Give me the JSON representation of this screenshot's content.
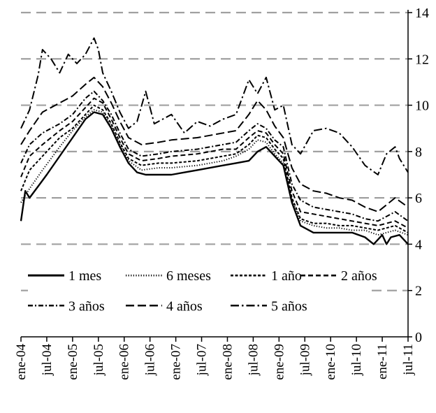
{
  "chart_data": {
    "type": "line",
    "title": "",
    "xlabel": "",
    "ylabel": "",
    "ylim": [
      0,
      14
    ],
    "yticks": [
      0,
      2,
      4,
      6,
      8,
      10,
      12,
      14
    ],
    "ytick_labels": [
      "0",
      "2",
      "4",
      "6",
      "8",
      "10",
      "12",
      "14"
    ],
    "grid": "horizontal dashed at 2, 4, 6, 8, 10, 12, 14",
    "legend_position": "lower-left, inside plot",
    "x_tick_labels": [
      "ene-04",
      "jul-04",
      "ene-05",
      "jul-05",
      "ene-06",
      "jul-06",
      "ene-07",
      "jul-07",
      "ene-08",
      "jul-08",
      "ene-09",
      "jul-09",
      "ene-10",
      "jul-10",
      "ene-11",
      "jul-11"
    ],
    "x_start": "2004-01",
    "x_end": "2011-07",
    "series": [
      {
        "name": "1 mes",
        "style": "solid",
        "points": [
          [
            "2004-01",
            5.0
          ],
          [
            "2004-02",
            6.3
          ],
          [
            "2004-03",
            6.0
          ],
          [
            "2004-05",
            6.5
          ],
          [
            "2004-07",
            7.0
          ],
          [
            "2004-10",
            7.8
          ],
          [
            "2005-01",
            8.6
          ],
          [
            "2005-04",
            9.4
          ],
          [
            "2005-06",
            9.7
          ],
          [
            "2005-08",
            9.6
          ],
          [
            "2005-10",
            9.0
          ],
          [
            "2005-12",
            8.2
          ],
          [
            "2006-02",
            7.5
          ],
          [
            "2006-04",
            7.1
          ],
          [
            "2006-06",
            7.0
          ],
          [
            "2006-12",
            7.0
          ],
          [
            "2007-03",
            7.1
          ],
          [
            "2007-06",
            7.2
          ],
          [
            "2007-09",
            7.3
          ],
          [
            "2007-12",
            7.4
          ],
          [
            "2008-03",
            7.5
          ],
          [
            "2008-06",
            7.6
          ],
          [
            "2008-08",
            8.0
          ],
          [
            "2008-10",
            8.2
          ],
          [
            "2008-12",
            7.8
          ],
          [
            "2009-02",
            7.4
          ],
          [
            "2009-04",
            5.8
          ],
          [
            "2009-06",
            4.8
          ],
          [
            "2009-09",
            4.5
          ],
          [
            "2009-12",
            4.5
          ],
          [
            "2010-03",
            4.5
          ],
          [
            "2010-06",
            4.5
          ],
          [
            "2010-09",
            4.3
          ],
          [
            "2010-11",
            4.0
          ],
          [
            "2011-01",
            4.4
          ],
          [
            "2011-02",
            4.0
          ],
          [
            "2011-03",
            4.3
          ],
          [
            "2011-05",
            4.4
          ],
          [
            "2011-07",
            4.0
          ]
        ]
      },
      {
        "name": "6 meses",
        "style": "dotted",
        "points": [
          [
            "2004-01",
            5.8
          ],
          [
            "2004-03",
            6.4
          ],
          [
            "2004-06",
            7.2
          ],
          [
            "2004-10",
            8.2
          ],
          [
            "2005-01",
            8.9
          ],
          [
            "2005-04",
            9.5
          ],
          [
            "2005-06",
            9.8
          ],
          [
            "2005-08",
            9.7
          ],
          [
            "2005-10",
            9.1
          ],
          [
            "2005-12",
            8.3
          ],
          [
            "2006-02",
            7.6
          ],
          [
            "2006-05",
            7.2
          ],
          [
            "2006-09",
            7.3
          ],
          [
            "2006-12",
            7.3
          ],
          [
            "2007-06",
            7.4
          ],
          [
            "2007-09",
            7.5
          ],
          [
            "2007-12",
            7.6
          ],
          [
            "2008-03",
            7.8
          ],
          [
            "2008-06",
            8.1
          ],
          [
            "2008-08",
            8.5
          ],
          [
            "2008-10",
            8.4
          ],
          [
            "2008-12",
            7.9
          ],
          [
            "2009-02",
            7.5
          ],
          [
            "2009-04",
            5.9
          ],
          [
            "2009-06",
            5.0
          ],
          [
            "2009-09",
            4.8
          ],
          [
            "2009-12",
            4.7
          ],
          [
            "2010-03",
            4.7
          ],
          [
            "2010-06",
            4.6
          ],
          [
            "2010-09",
            4.6
          ],
          [
            "2010-12",
            4.4
          ],
          [
            "2011-02",
            4.5
          ],
          [
            "2011-04",
            4.6
          ],
          [
            "2011-07",
            4.4
          ]
        ]
      },
      {
        "name": "1 año",
        "style": "short-dash",
        "points": [
          [
            "2004-01",
            6.3
          ],
          [
            "2004-03",
            7.2
          ],
          [
            "2004-06",
            7.8
          ],
          [
            "2004-10",
            8.6
          ],
          [
            "2005-01",
            9.0
          ],
          [
            "2005-04",
            9.6
          ],
          [
            "2005-06",
            10.0
          ],
          [
            "2005-08",
            9.8
          ],
          [
            "2005-10",
            9.2
          ],
          [
            "2005-12",
            8.4
          ],
          [
            "2006-02",
            7.7
          ],
          [
            "2006-05",
            7.4
          ],
          [
            "2006-09",
            7.5
          ],
          [
            "2006-12",
            7.5
          ],
          [
            "2007-06",
            7.6
          ],
          [
            "2007-09",
            7.7
          ],
          [
            "2007-12",
            7.8
          ],
          [
            "2008-03",
            7.9
          ],
          [
            "2008-06",
            8.3
          ],
          [
            "2008-08",
            8.7
          ],
          [
            "2008-10",
            8.6
          ],
          [
            "2008-12",
            8.1
          ],
          [
            "2009-02",
            7.7
          ],
          [
            "2009-04",
            6.0
          ],
          [
            "2009-06",
            5.1
          ],
          [
            "2009-09",
            4.9
          ],
          [
            "2009-12",
            4.9
          ],
          [
            "2010-03",
            4.8
          ],
          [
            "2010-06",
            4.8
          ],
          [
            "2010-09",
            4.7
          ],
          [
            "2010-12",
            4.6
          ],
          [
            "2011-02",
            4.7
          ],
          [
            "2011-04",
            4.8
          ],
          [
            "2011-07",
            4.5
          ]
        ]
      },
      {
        "name": "2 años",
        "style": "dashed",
        "points": [
          [
            "2004-01",
            6.9
          ],
          [
            "2004-03",
            7.8
          ],
          [
            "2004-06",
            8.3
          ],
          [
            "2004-10",
            8.9
          ],
          [
            "2005-01",
            9.3
          ],
          [
            "2005-04",
            9.9
          ],
          [
            "2005-06",
            10.3
          ],
          [
            "2005-08",
            10.1
          ],
          [
            "2005-10",
            9.4
          ],
          [
            "2005-12",
            8.6
          ],
          [
            "2006-02",
            7.9
          ],
          [
            "2006-05",
            7.6
          ],
          [
            "2006-09",
            7.7
          ],
          [
            "2006-12",
            7.8
          ],
          [
            "2007-06",
            7.9
          ],
          [
            "2007-09",
            8.0
          ],
          [
            "2007-12",
            8.1
          ],
          [
            "2008-03",
            8.1
          ],
          [
            "2008-06",
            8.6
          ],
          [
            "2008-08",
            8.9
          ],
          [
            "2008-10",
            8.8
          ],
          [
            "2008-12",
            8.3
          ],
          [
            "2009-02",
            7.9
          ],
          [
            "2009-04",
            6.3
          ],
          [
            "2009-06",
            5.4
          ],
          [
            "2009-09",
            5.3
          ],
          [
            "2009-12",
            5.2
          ],
          [
            "2010-03",
            5.1
          ],
          [
            "2010-06",
            5.0
          ],
          [
            "2010-09",
            4.9
          ],
          [
            "2010-12",
            4.8
          ],
          [
            "2011-02",
            4.9
          ],
          [
            "2011-04",
            5.0
          ],
          [
            "2011-07",
            4.7
          ]
        ]
      },
      {
        "name": "3 años",
        "style": "dash-dot",
        "points": [
          [
            "2004-01",
            7.5
          ],
          [
            "2004-03",
            8.3
          ],
          [
            "2004-06",
            8.8
          ],
          [
            "2004-10",
            9.2
          ],
          [
            "2005-01",
            9.6
          ],
          [
            "2005-04",
            10.3
          ],
          [
            "2005-06",
            10.6
          ],
          [
            "2005-08",
            10.2
          ],
          [
            "2005-10",
            9.6
          ],
          [
            "2005-12",
            8.8
          ],
          [
            "2006-02",
            8.1
          ],
          [
            "2006-05",
            7.8
          ],
          [
            "2006-09",
            7.9
          ],
          [
            "2006-12",
            8.0
          ],
          [
            "2007-06",
            8.1
          ],
          [
            "2007-09",
            8.2
          ],
          [
            "2007-12",
            8.3
          ],
          [
            "2008-03",
            8.4
          ],
          [
            "2008-06",
            8.9
          ],
          [
            "2008-08",
            9.2
          ],
          [
            "2008-10",
            9.0
          ],
          [
            "2008-12",
            8.5
          ],
          [
            "2009-02",
            8.2
          ],
          [
            "2009-04",
            6.6
          ],
          [
            "2009-06",
            5.9
          ],
          [
            "2009-09",
            5.6
          ],
          [
            "2009-12",
            5.5
          ],
          [
            "2010-03",
            5.4
          ],
          [
            "2010-06",
            5.3
          ],
          [
            "2010-09",
            5.1
          ],
          [
            "2010-12",
            5.0
          ],
          [
            "2011-02",
            5.2
          ],
          [
            "2011-04",
            5.4
          ],
          [
            "2011-07",
            5.0
          ]
        ]
      },
      {
        "name": "4 años",
        "style": "long-dash",
        "points": [
          [
            "2004-01",
            8.3
          ],
          [
            "2004-03",
            8.9
          ],
          [
            "2004-06",
            9.7
          ],
          [
            "2004-10",
            10.1
          ],
          [
            "2005-01",
            10.4
          ],
          [
            "2005-04",
            10.9
          ],
          [
            "2005-06",
            11.2
          ],
          [
            "2005-08",
            10.8
          ],
          [
            "2005-10",
            10.1
          ],
          [
            "2005-12",
            9.3
          ],
          [
            "2006-02",
            8.6
          ],
          [
            "2006-05",
            8.3
          ],
          [
            "2006-09",
            8.4
          ],
          [
            "2006-12",
            8.5
          ],
          [
            "2007-06",
            8.6
          ],
          [
            "2007-09",
            8.7
          ],
          [
            "2007-12",
            8.8
          ],
          [
            "2008-03",
            8.9
          ],
          [
            "2008-06",
            9.6
          ],
          [
            "2008-08",
            10.2
          ],
          [
            "2008-10",
            9.8
          ],
          [
            "2008-12",
            9.1
          ],
          [
            "2009-02",
            8.6
          ],
          [
            "2009-04",
            7.3
          ],
          [
            "2009-06",
            6.6
          ],
          [
            "2009-09",
            6.3
          ],
          [
            "2009-12",
            6.2
          ],
          [
            "2010-03",
            6.0
          ],
          [
            "2010-06",
            5.9
          ],
          [
            "2010-09",
            5.6
          ],
          [
            "2010-12",
            5.4
          ],
          [
            "2011-02",
            5.7
          ],
          [
            "2011-04",
            6.0
          ],
          [
            "2011-07",
            5.6
          ]
        ]
      },
      {
        "name": "5 años",
        "style": "long-dash-dot",
        "points": [
          [
            "2004-01",
            9.0
          ],
          [
            "2004-03",
            9.8
          ],
          [
            "2004-05",
            11.3
          ],
          [
            "2004-06",
            12.4
          ],
          [
            "2004-08",
            12.0
          ],
          [
            "2004-10",
            11.4
          ],
          [
            "2004-12",
            12.2
          ],
          [
            "2005-02",
            11.8
          ],
          [
            "2005-04",
            12.2
          ],
          [
            "2005-06",
            12.9
          ],
          [
            "2005-07",
            12.4
          ],
          [
            "2005-08",
            11.4
          ],
          [
            "2005-10",
            10.6
          ],
          [
            "2005-12",
            9.7
          ],
          [
            "2006-02",
            9.0
          ],
          [
            "2006-04",
            9.3
          ],
          [
            "2006-06",
            10.6
          ],
          [
            "2006-08",
            9.2
          ],
          [
            "2006-12",
            9.6
          ],
          [
            "2007-03",
            8.8
          ],
          [
            "2007-06",
            9.3
          ],
          [
            "2007-09",
            9.1
          ],
          [
            "2007-12",
            9.4
          ],
          [
            "2008-03",
            9.6
          ],
          [
            "2008-06",
            11.1
          ],
          [
            "2008-08",
            10.5
          ],
          [
            "2008-10",
            11.2
          ],
          [
            "2008-12",
            9.8
          ],
          [
            "2009-02",
            10.0
          ],
          [
            "2009-04",
            8.3
          ],
          [
            "2009-06",
            7.9
          ],
          [
            "2009-09",
            8.9
          ],
          [
            "2009-12",
            9.0
          ],
          [
            "2010-03",
            8.8
          ],
          [
            "2010-06",
            8.2
          ],
          [
            "2010-09",
            7.4
          ],
          [
            "2010-12",
            7.0
          ],
          [
            "2011-02",
            7.9
          ],
          [
            "2011-04",
            8.2
          ],
          [
            "2011-05",
            7.7
          ],
          [
            "2011-07",
            7.1
          ]
        ]
      }
    ]
  }
}
